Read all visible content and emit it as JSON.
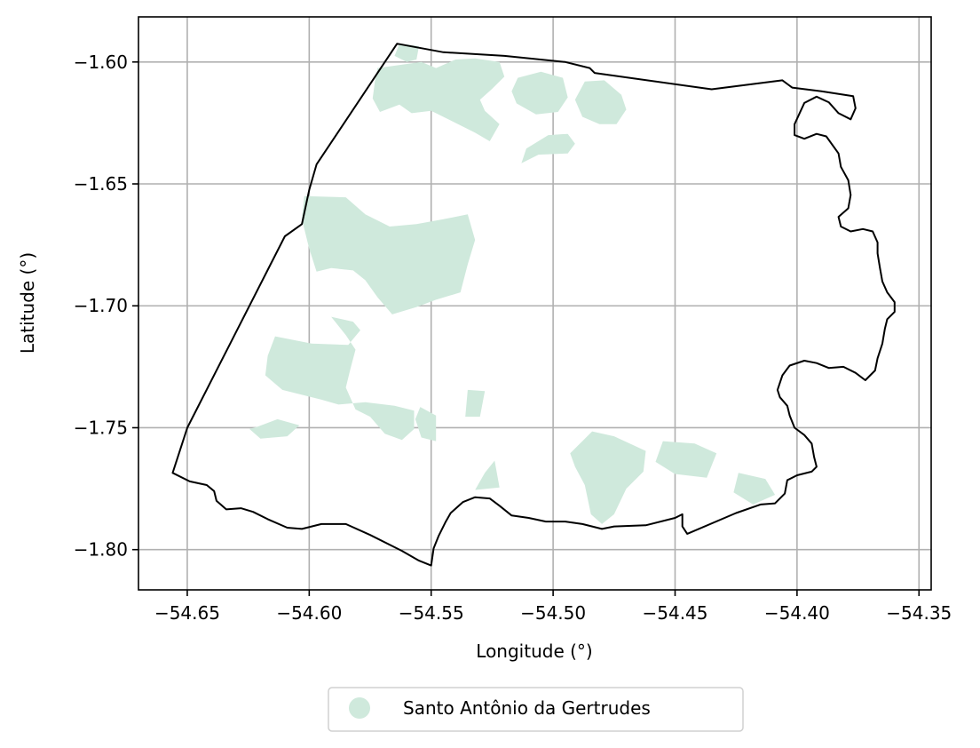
{
  "chart_data": {
    "type": "map",
    "xlabel": "Longitude (°)",
    "ylabel": "Latitude (°)",
    "xlim": [
      -54.67,
      -54.345
    ],
    "ylim": [
      -1.8165,
      -1.5815
    ],
    "xticks": [
      -54.65,
      -54.6,
      -54.55,
      -54.5,
      -54.45,
      -54.4,
      -54.35
    ],
    "xtick_labels": [
      "−54.65",
      "−54.60",
      "−54.55",
      "−54.50",
      "−54.45",
      "−54.40",
      "−54.35"
    ],
    "yticks": [
      -1.6,
      -1.65,
      -1.7,
      -1.75,
      -1.8
    ],
    "ytick_labels": [
      "−1.60",
      "−1.65",
      "−1.70",
      "−1.75",
      "−1.80"
    ],
    "grid": true,
    "legend": {
      "placement": "bottom-center",
      "entries": [
        {
          "label": "Santo Antônio da Gertrudes",
          "color": "#cfe9dc"
        }
      ]
    },
    "colors": {
      "boundary": "#000000",
      "patch": "#cfe9dc",
      "grid": "#b0b0b0"
    },
    "boundary": [
      [
        -54.564,
        -1.5925
      ],
      [
        -54.545,
        -1.596
      ],
      [
        -54.52,
        -1.5975
      ],
      [
        -54.495,
        -1.6
      ],
      [
        -54.485,
        -1.6025
      ],
      [
        -54.483,
        -1.6045
      ],
      [
        -54.435,
        -1.6112
      ],
      [
        -54.406,
        -1.6075
      ],
      [
        -54.402,
        -1.6105
      ],
      [
        -54.39,
        -1.612
      ],
      [
        -54.377,
        -1.614
      ],
      [
        -54.376,
        -1.619
      ],
      [
        -54.378,
        -1.6235
      ],
      [
        -54.383,
        -1.621
      ],
      [
        -54.387,
        -1.6165
      ],
      [
        -54.392,
        -1.6142
      ],
      [
        -54.397,
        -1.6168
      ],
      [
        -54.401,
        -1.6255
      ],
      [
        -54.401,
        -1.63
      ],
      [
        -54.397,
        -1.6315
      ],
      [
        -54.392,
        -1.6295
      ],
      [
        -54.388,
        -1.6305
      ],
      [
        -54.383,
        -1.6375
      ],
      [
        -54.382,
        -1.643
      ],
      [
        -54.379,
        -1.6485
      ],
      [
        -54.378,
        -1.6545
      ],
      [
        -54.379,
        -1.66
      ],
      [
        -54.383,
        -1.6635
      ],
      [
        -54.382,
        -1.6675
      ],
      [
        -54.378,
        -1.6695
      ],
      [
        -54.373,
        -1.6685
      ],
      [
        -54.369,
        -1.6695
      ],
      [
        -54.367,
        -1.674
      ],
      [
        -54.367,
        -1.6785
      ],
      [
        -54.366,
        -1.6845
      ],
      [
        -54.365,
        -1.69
      ],
      [
        -54.363,
        -1.6945
      ],
      [
        -54.36,
        -1.6985
      ],
      [
        -54.36,
        -1.7025
      ],
      [
        -54.363,
        -1.7055
      ],
      [
        -54.364,
        -1.7095
      ],
      [
        -54.365,
        -1.7155
      ],
      [
        -54.367,
        -1.7215
      ],
      [
        -54.368,
        -1.7265
      ],
      [
        -54.372,
        -1.7305
      ],
      [
        -54.376,
        -1.7275
      ],
      [
        -54.381,
        -1.725
      ],
      [
        -54.387,
        -1.7255
      ],
      [
        -54.392,
        -1.7235
      ],
      [
        -54.397,
        -1.7225
      ],
      [
        -54.403,
        -1.7245
      ],
      [
        -54.406,
        -1.7285
      ],
      [
        -54.408,
        -1.7345
      ],
      [
        -54.407,
        -1.7375
      ],
      [
        -54.404,
        -1.741
      ],
      [
        -54.403,
        -1.745
      ],
      [
        -54.401,
        -1.75
      ],
      [
        -54.397,
        -1.753
      ],
      [
        -54.394,
        -1.7565
      ],
      [
        -54.393,
        -1.762
      ],
      [
        -54.392,
        -1.766
      ],
      [
        -54.394,
        -1.768
      ],
      [
        -54.4,
        -1.7695
      ],
      [
        -54.404,
        -1.7715
      ],
      [
        -54.405,
        -1.777
      ],
      [
        -54.409,
        -1.781
      ],
      [
        -54.415,
        -1.7815
      ],
      [
        -54.425,
        -1.785
      ],
      [
        -54.445,
        -1.7935
      ],
      [
        -54.447,
        -1.7905
      ],
      [
        -54.447,
        -1.7855
      ],
      [
        -54.45,
        -1.787
      ],
      [
        -54.462,
        -1.79
      ],
      [
        -54.475,
        -1.7905
      ],
      [
        -54.48,
        -1.7915
      ],
      [
        -54.488,
        -1.7895
      ],
      [
        -54.495,
        -1.7885
      ],
      [
        -54.503,
        -1.7885
      ],
      [
        -54.51,
        -1.787
      ],
      [
        -54.517,
        -1.786
      ],
      [
        -54.522,
        -1.782
      ],
      [
        -54.526,
        -1.779
      ],
      [
        -54.532,
        -1.7785
      ],
      [
        -54.537,
        -1.7805
      ],
      [
        -54.542,
        -1.785
      ],
      [
        -54.544,
        -1.7885
      ],
      [
        -54.547,
        -1.7945
      ],
      [
        -54.549,
        -1.7995
      ],
      [
        -54.55,
        -1.8065
      ],
      [
        -54.555,
        -1.8045
      ],
      [
        -54.562,
        -1.8005
      ],
      [
        -54.575,
        -1.794
      ],
      [
        -54.585,
        -1.7895
      ],
      [
        -54.595,
        -1.7895
      ],
      [
        -54.603,
        -1.7915
      ],
      [
        -54.609,
        -1.791
      ],
      [
        -54.617,
        -1.7875
      ],
      [
        -54.623,
        -1.7845
      ],
      [
        -54.628,
        -1.783
      ],
      [
        -54.634,
        -1.7835
      ],
      [
        -54.638,
        -1.78
      ],
      [
        -54.639,
        -1.776
      ],
      [
        -54.642,
        -1.7735
      ],
      [
        -54.649,
        -1.772
      ],
      [
        -54.656,
        -1.7685
      ],
      [
        -54.65,
        -1.75
      ],
      [
        -54.61,
        -1.6715
      ],
      [
        -54.603,
        -1.6665
      ],
      [
        -54.6,
        -1.6525
      ],
      [
        -54.597,
        -1.642
      ],
      [
        -54.564,
        -1.5925
      ]
    ],
    "patches": [
      [
        [
          -54.563,
          -1.5925
        ],
        [
          -54.555,
          -1.5935
        ],
        [
          -54.556,
          -1.599
        ],
        [
          -54.56,
          -1.6
        ],
        [
          -54.565,
          -1.5975
        ]
      ],
      [
        [
          -54.572,
          -1.6025
        ],
        [
          -54.554,
          -1.6
        ],
        [
          -54.548,
          -1.6025
        ],
        [
          -54.54,
          -1.599
        ],
        [
          -54.532,
          -1.5985
        ],
        [
          -54.522,
          -1.6
        ],
        [
          -54.52,
          -1.606
        ],
        [
          -54.525,
          -1.611
        ],
        [
          -54.53,
          -1.6155
        ],
        [
          -54.528,
          -1.62
        ],
        [
          -54.522,
          -1.6255
        ],
        [
          -54.526,
          -1.6325
        ],
        [
          -54.532,
          -1.629
        ],
        [
          -54.54,
          -1.625
        ],
        [
          -54.55,
          -1.62
        ],
        [
          -54.558,
          -1.621
        ],
        [
          -54.563,
          -1.6175
        ],
        [
          -54.571,
          -1.6205
        ],
        [
          -54.574,
          -1.615
        ],
        [
          -54.573,
          -1.6075
        ]
      ],
      [
        [
          -54.5145,
          -1.6065
        ],
        [
          -54.505,
          -1.604
        ],
        [
          -54.496,
          -1.6065
        ],
        [
          -54.494,
          -1.6145
        ],
        [
          -54.498,
          -1.6205
        ],
        [
          -54.507,
          -1.6215
        ],
        [
          -54.515,
          -1.617
        ],
        [
          -54.517,
          -1.612
        ]
      ],
      [
        [
          -54.487,
          -1.608
        ],
        [
          -54.479,
          -1.6075
        ],
        [
          -54.472,
          -1.6135
        ],
        [
          -54.47,
          -1.6195
        ],
        [
          -54.474,
          -1.6255
        ],
        [
          -54.481,
          -1.6255
        ],
        [
          -54.488,
          -1.6225
        ],
        [
          -54.491,
          -1.6155
        ]
      ],
      [
        [
          -54.502,
          -1.63
        ],
        [
          -54.494,
          -1.6295
        ],
        [
          -54.491,
          -1.6335
        ],
        [
          -54.494,
          -1.6375
        ],
        [
          -54.506,
          -1.638
        ],
        [
          -54.513,
          -1.6415
        ],
        [
          -54.511,
          -1.6355
        ]
      ],
      [
        [
          -54.602,
          -1.655
        ],
        [
          -54.585,
          -1.6555
        ],
        [
          -54.577,
          -1.6625
        ],
        [
          -54.567,
          -1.6675
        ],
        [
          -54.556,
          -1.6665
        ],
        [
          -54.545,
          -1.6645
        ],
        [
          -54.535,
          -1.6625
        ],
        [
          -54.532,
          -1.673
        ],
        [
          -54.535,
          -1.683
        ],
        [
          -54.538,
          -1.6945
        ],
        [
          -54.548,
          -1.6975
        ],
        [
          -54.556,
          -1.7005
        ],
        [
          -54.566,
          -1.7035
        ],
        [
          -54.572,
          -1.6965
        ],
        [
          -54.577,
          -1.6895
        ],
        [
          -54.582,
          -1.6855
        ],
        [
          -54.591,
          -1.6845
        ],
        [
          -54.597,
          -1.686
        ],
        [
          -54.6,
          -1.6765
        ],
        [
          -54.603,
          -1.6645
        ]
      ],
      [
        [
          -54.591,
          -1.7045
        ],
        [
          -54.582,
          -1.7065
        ],
        [
          -54.579,
          -1.71
        ],
        [
          -54.584,
          -1.716
        ],
        [
          -54.599,
          -1.7155
        ],
        [
          -54.614,
          -1.7125
        ],
        [
          -54.617,
          -1.7205
        ],
        [
          -54.618,
          -1.7285
        ],
        [
          -54.611,
          -1.7345
        ],
        [
          -54.603,
          -1.7365
        ],
        [
          -54.595,
          -1.7385
        ],
        [
          -54.588,
          -1.7405
        ],
        [
          -54.577,
          -1.7395
        ],
        [
          -54.565,
          -1.741
        ],
        [
          -54.557,
          -1.743
        ],
        [
          -54.557,
          -1.7505
        ],
        [
          -54.562,
          -1.755
        ],
        [
          -54.569,
          -1.7525
        ],
        [
          -54.575,
          -1.7455
        ],
        [
          -54.581,
          -1.7425
        ],
        [
          -54.585,
          -1.7335
        ],
        [
          -54.583,
          -1.7255
        ],
        [
          -54.581,
          -1.718
        ],
        [
          -54.585,
          -1.712
        ]
      ],
      [
        [
          -54.5545,
          -1.7415
        ],
        [
          -54.5565,
          -1.7465
        ],
        [
          -54.554,
          -1.754
        ],
        [
          -54.548,
          -1.7555
        ],
        [
          -54.548,
          -1.745
        ]
      ],
      [
        [
          -54.535,
          -1.7345
        ],
        [
          -54.528,
          -1.735
        ],
        [
          -54.53,
          -1.7455
        ],
        [
          -54.536,
          -1.7455
        ]
      ],
      [
        [
          -54.6245,
          -1.7505
        ],
        [
          -54.62,
          -1.7545
        ],
        [
          -54.609,
          -1.7535
        ],
        [
          -54.604,
          -1.749
        ],
        [
          -54.613,
          -1.7465
        ],
        [
          -54.621,
          -1.7495
        ]
      ],
      [
        [
          -54.524,
          -1.7635
        ],
        [
          -54.522,
          -1.7745
        ],
        [
          -54.532,
          -1.7755
        ],
        [
          -54.528,
          -1.7685
        ]
      ],
      [
        [
          -54.484,
          -1.7515
        ],
        [
          -54.475,
          -1.7535
        ],
        [
          -54.462,
          -1.7595
        ],
        [
          -54.463,
          -1.768
        ],
        [
          -54.47,
          -1.775
        ],
        [
          -54.475,
          -1.7855
        ],
        [
          -54.48,
          -1.7895
        ],
        [
          -54.4845,
          -1.7855
        ],
        [
          -54.487,
          -1.7735
        ],
        [
          -54.491,
          -1.766
        ],
        [
          -54.493,
          -1.7605
        ]
      ],
      [
        [
          -54.455,
          -1.7555
        ],
        [
          -54.442,
          -1.7565
        ],
        [
          -54.433,
          -1.7605
        ],
        [
          -54.437,
          -1.7705
        ],
        [
          -54.45,
          -1.769
        ],
        [
          -54.458,
          -1.764
        ]
      ],
      [
        [
          -54.424,
          -1.7685
        ],
        [
          -54.413,
          -1.771
        ],
        [
          -54.409,
          -1.7775
        ],
        [
          -54.418,
          -1.7815
        ],
        [
          -54.426,
          -1.7765
        ]
      ]
    ]
  }
}
